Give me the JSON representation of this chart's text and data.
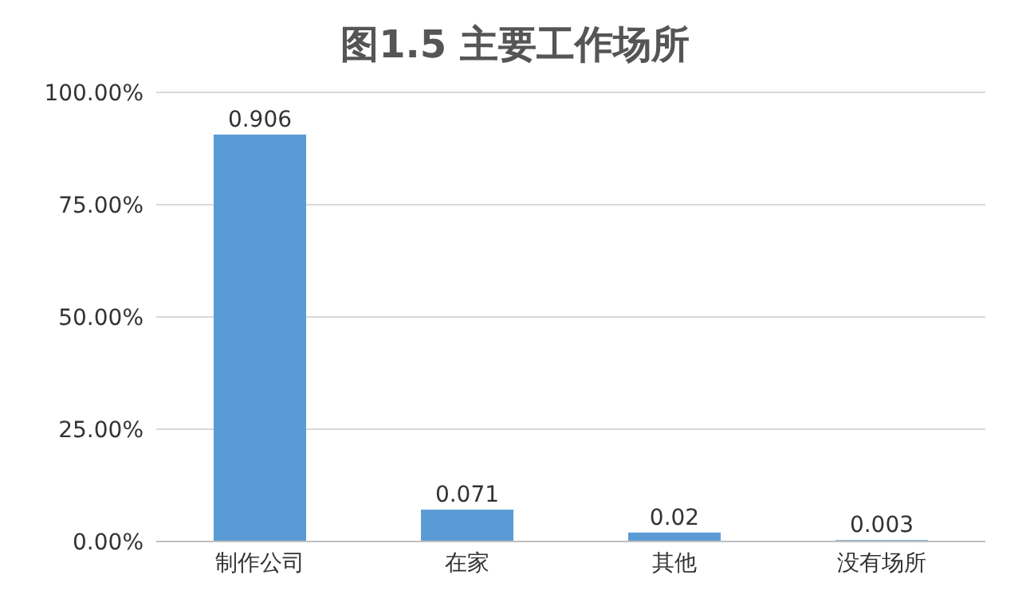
{
  "chart_data": {
    "type": "bar",
    "title": "图1.5 主要工作场所",
    "categories": [
      "制作公司",
      "在家",
      "其他",
      "没有场所"
    ],
    "values": [
      0.906,
      0.071,
      0.02,
      0.003
    ],
    "color": "#5b9bd5",
    "ylim": [
      0,
      1
    ],
    "yticks": [
      {
        "value": 0,
        "label": "0.00%"
      },
      {
        "value": 0.25,
        "label": "25.00%"
      },
      {
        "value": 0.5,
        "label": "50.00%"
      },
      {
        "value": 0.75,
        "label": "75.00%"
      },
      {
        "value": 1,
        "label": "100.00%"
      }
    ],
    "grid": "y",
    "data_labels": true
  }
}
